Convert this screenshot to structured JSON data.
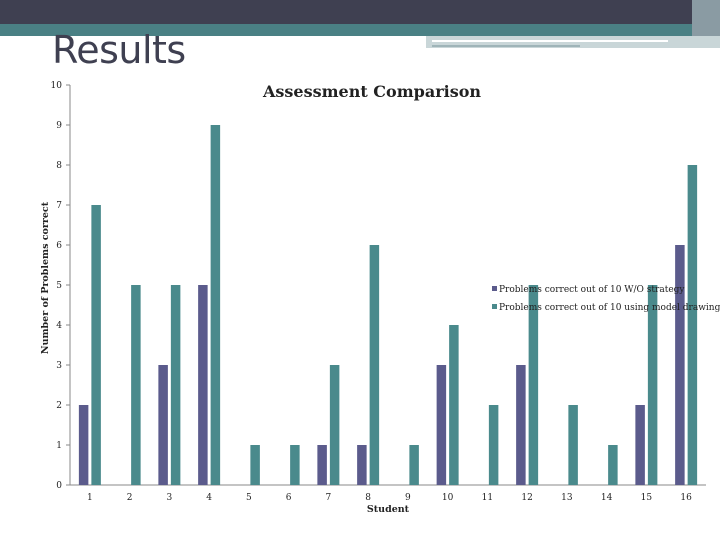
{
  "slide": {
    "title": "Results",
    "colors": {
      "header_dark": "#3f4051",
      "header_teal": "#4a8084"
    }
  },
  "chart_data": {
    "type": "bar",
    "title": "Assessment Comparison",
    "xlabel": "Student",
    "ylabel": "Number of Problems correct",
    "categories": [
      "1",
      "2",
      "3",
      "4",
      "5",
      "6",
      "7",
      "8",
      "9",
      "10",
      "11",
      "12",
      "13",
      "14",
      "15",
      "16"
    ],
    "ylim": [
      0,
      10
    ],
    "yticks": [
      0,
      1,
      2,
      3,
      4,
      5,
      6,
      7,
      8,
      9,
      10
    ],
    "grid": false,
    "legend_position": "right",
    "series": [
      {
        "name": "Problems correct out of 10 W/O strategy",
        "color": "#5b5b8c",
        "values": [
          2,
          null,
          3,
          5,
          null,
          null,
          1,
          1,
          null,
          3,
          null,
          3,
          null,
          null,
          2,
          6
        ]
      },
      {
        "name": "Problems correct out of 10 using model drawing",
        "color": "#4a8a8c",
        "values": [
          7,
          5,
          5,
          9,
          1,
          1,
          3,
          6,
          1,
          4,
          2,
          5,
          2,
          1,
          5,
          8
        ]
      }
    ]
  }
}
